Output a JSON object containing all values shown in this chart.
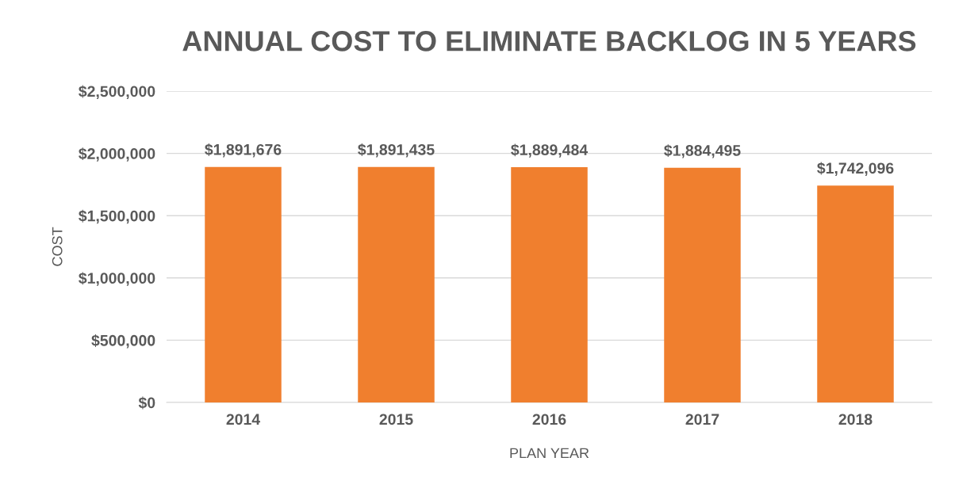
{
  "chart_data": {
    "type": "bar",
    "title": "ANNUAL COST TO ELIMINATE BACKLOG IN 5 YEARS",
    "xlabel": "PLAN YEAR",
    "ylabel": "COST",
    "categories": [
      "2014",
      "2015",
      "2016",
      "2017",
      "2018"
    ],
    "values": [
      1891676,
      1891435,
      1889484,
      1884495,
      1742096
    ],
    "value_labels": [
      "$1,891,676",
      "$1,891,435",
      "$1,889,484",
      "$1,884,495",
      "$1,742,096"
    ],
    "color": "#f07f2e",
    "ylim": [
      0,
      2500000
    ],
    "yticks": [
      {
        "value": 0,
        "label": "$0"
      },
      {
        "value": 500000,
        "label": "$500,000"
      },
      {
        "value": 1000000,
        "label": "$1,000,000"
      },
      {
        "value": 1500000,
        "label": "$1,500,000"
      },
      {
        "value": 2000000,
        "label": "$2,000,000"
      },
      {
        "value": 2500000,
        "label": "$2,500,000"
      }
    ],
    "grid": "y",
    "legend": false
  }
}
